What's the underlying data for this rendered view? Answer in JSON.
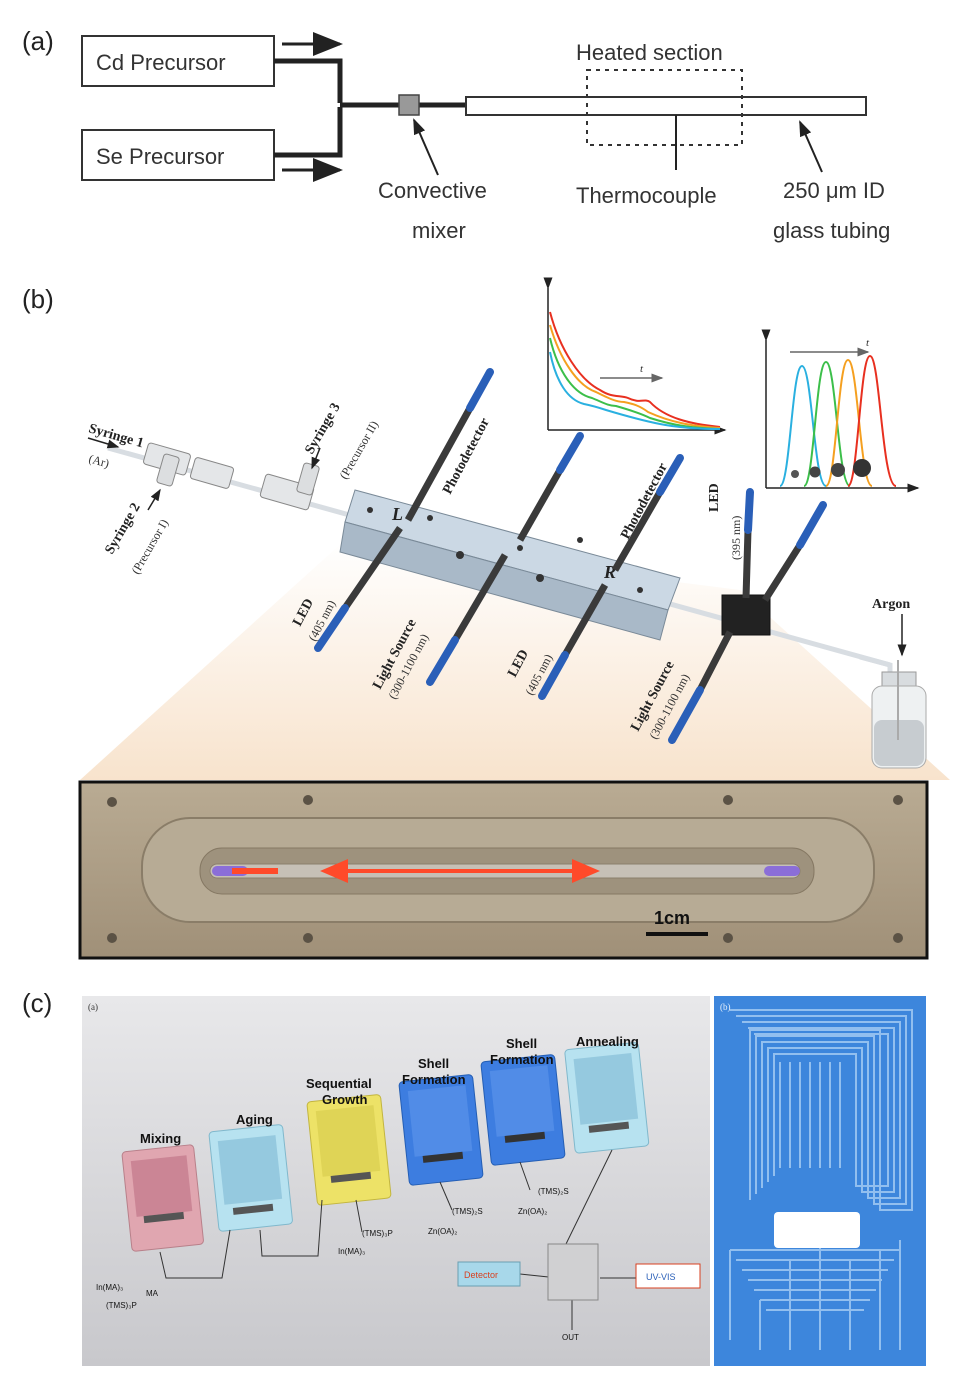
{
  "panel_a": {
    "letter": "(a)",
    "cd_precursor": "Cd Precursor",
    "se_precursor": "Se Precursor",
    "heated_section": "Heated section",
    "convective_1": "Convective",
    "convective_2": "mixer",
    "thermocouple": "Thermocouple",
    "tubing_1": "250 μm ID",
    "tubing_2": "glass tubing"
  },
  "panel_b": {
    "letter": "(b)",
    "syringe1": "Syringe 1",
    "syringe1_sub": "(Ar)",
    "syringe2": "Syringe 2",
    "syringe2_sub": "(Precursor I)",
    "syringe3": "Syringe 3",
    "syringe3_sub": "(Precursor II)",
    "photodetector": "Photodetector",
    "led": "LED",
    "led_405": "(405 nm)",
    "led_395": "(395 nm)",
    "light_source": "Light Source",
    "light_range": "(300-1100 nm)",
    "argon": "Argon",
    "block_l": "L",
    "block_r": "R",
    "t": "t",
    "scale": "1cm"
  },
  "panel_c": {
    "letter": "(c)",
    "sub_a": "(a)",
    "sub_b": "(b)",
    "modules": [
      "Mixing",
      "Aging",
      "Sequential",
      "Growth",
      "Shell",
      "Formation",
      "Shell",
      "Formation",
      "Annealing"
    ],
    "reagents": [
      "In(MA)₃",
      "(TMS)₃P",
      "MA",
      "(TMS)₃P",
      "In(MA)₃",
      "(TMS)₂S",
      "Zn(OA)₂",
      "(TMS)₂S",
      "Zn(OA)₂"
    ],
    "detector": "Detector",
    "uvvis": "UV-VIS",
    "out": "OUT"
  },
  "colors": {
    "tube": "#ffffff",
    "fiber": "#2a5fb8",
    "block": "#c8d6e2",
    "chip_blue": "#2f6fd0",
    "chip_red": "#d98b96",
    "chip_yellow": "#e8de5a",
    "chip_cyan": "#a8d8ea",
    "spectra": [
      "#2ab0e0",
      "#3cbf4a",
      "#f5a020",
      "#e83020"
    ]
  }
}
